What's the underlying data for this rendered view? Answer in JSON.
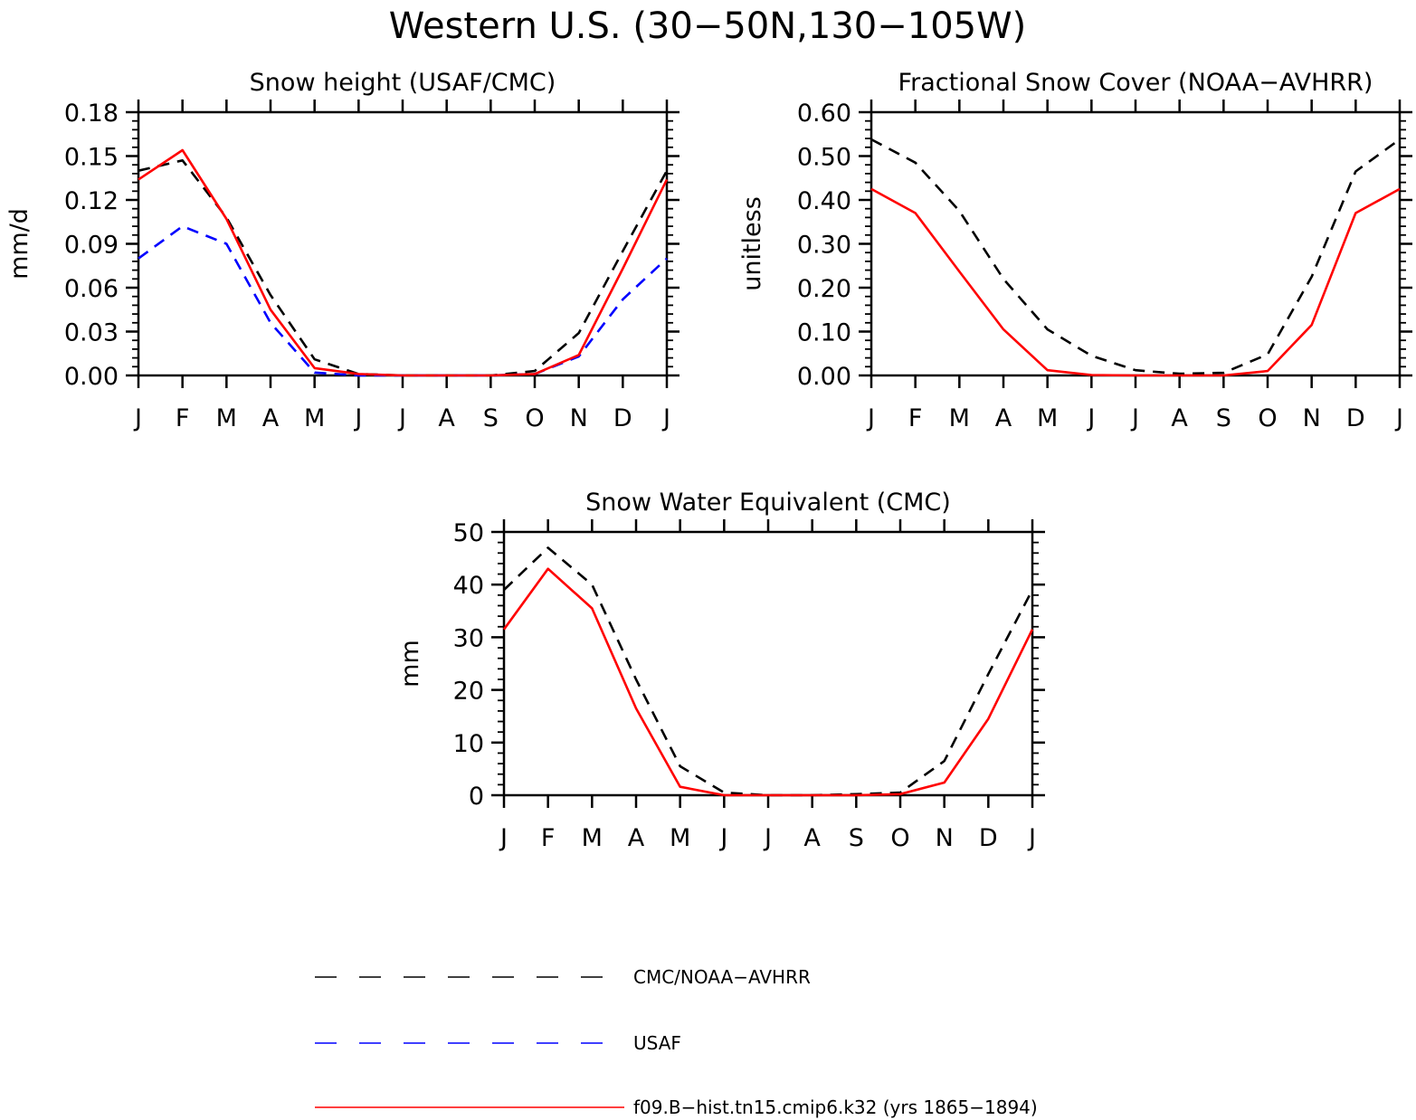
{
  "title": "Western U.S. (30−50N,130−105W)",
  "colors": {
    "obs": "#000000",
    "usaf": "#0000ff",
    "model": "#ff0000",
    "axis": "#000000"
  },
  "months": [
    "J",
    "F",
    "M",
    "A",
    "M",
    "J",
    "J",
    "A",
    "S",
    "O",
    "N",
    "D",
    "J"
  ],
  "legend": [
    {
      "key": "obs",
      "label": "CMC/NOAA−AVHRR",
      "color": "#000000",
      "style": "dashed"
    },
    {
      "key": "usaf",
      "label": "USAF",
      "color": "#0000ff",
      "style": "dashed"
    },
    {
      "key": "model",
      "label": "f09.B−hist.tn15.cmip6.k32 (yrs 1865−1894)",
      "color": "#ff0000",
      "style": "solid"
    }
  ],
  "chart_data": [
    {
      "type": "line",
      "title": "Snow height (USAF/CMC)",
      "ylabel": "mm/d",
      "ylim": [
        0,
        0.18
      ],
      "yticks": [
        "0.00",
        "0.03",
        "0.06",
        "0.09",
        "0.12",
        "0.15",
        "0.18"
      ],
      "ytick_values": [
        0,
        0.03,
        0.06,
        0.09,
        0.12,
        0.15,
        0.18
      ],
      "categories": [
        "J",
        "F",
        "M",
        "A",
        "M",
        "J",
        "J",
        "A",
        "S",
        "O",
        "N",
        "D",
        "J"
      ],
      "series": [
        {
          "key": "obs",
          "values": [
            0.14,
            0.147,
            0.108,
            0.055,
            0.011,
            0.001,
            0.0,
            0.0,
            0.0,
            0.003,
            0.029,
            0.085,
            0.14
          ]
        },
        {
          "key": "usaf",
          "values": [
            0.08,
            0.102,
            0.09,
            0.036,
            0.002,
            0.0,
            0.0,
            0.0,
            0.0,
            0.001,
            0.013,
            0.052,
            0.08
          ]
        },
        {
          "key": "model",
          "values": [
            0.134,
            0.154,
            0.107,
            0.045,
            0.005,
            0.001,
            0.0,
            0.0,
            0.0,
            0.001,
            0.014,
            0.073,
            0.134
          ]
        }
      ]
    },
    {
      "type": "line",
      "title": "Fractional Snow Cover (NOAA−AVHRR)",
      "ylabel": "unitless",
      "ylim": [
        0,
        0.6
      ],
      "yticks": [
        "0.00",
        "0.10",
        "0.20",
        "0.30",
        "0.40",
        "0.50",
        "0.60"
      ],
      "ytick_values": [
        0,
        0.1,
        0.2,
        0.3,
        0.4,
        0.5,
        0.6
      ],
      "categories": [
        "J",
        "F",
        "M",
        "A",
        "M",
        "J",
        "J",
        "A",
        "S",
        "O",
        "N",
        "D",
        "J"
      ],
      "series": [
        {
          "key": "obs",
          "values": [
            0.538,
            0.485,
            0.375,
            0.22,
            0.105,
            0.045,
            0.012,
            0.004,
            0.006,
            0.048,
            0.225,
            0.465,
            0.538
          ]
        },
        {
          "key": "model",
          "values": [
            0.425,
            0.37,
            0.237,
            0.105,
            0.012,
            0.001,
            0.0,
            0.0,
            0.0,
            0.01,
            0.115,
            0.37,
            0.425
          ]
        }
      ]
    },
    {
      "type": "line",
      "title": "Snow Water Equivalent (CMC)",
      "ylabel": "mm",
      "ylim": [
        0,
        50
      ],
      "yticks": [
        "0",
        "10",
        "20",
        "30",
        "40",
        "50"
      ],
      "ytick_values": [
        0,
        10,
        20,
        30,
        40,
        50
      ],
      "categories": [
        "J",
        "F",
        "M",
        "A",
        "M",
        "J",
        "J",
        "A",
        "S",
        "O",
        "N",
        "D",
        "J"
      ],
      "series": [
        {
          "key": "obs",
          "values": [
            39,
            47,
            40,
            22,
            5.5,
            0.5,
            0.0,
            0.0,
            0.2,
            0.5,
            6.5,
            23,
            39
          ]
        },
        {
          "key": "model",
          "values": [
            31.5,
            43,
            35.5,
            16.5,
            1.6,
            0.0,
            0.0,
            0.0,
            0.0,
            0.2,
            2.4,
            14.5,
            31.5
          ]
        }
      ]
    }
  ]
}
